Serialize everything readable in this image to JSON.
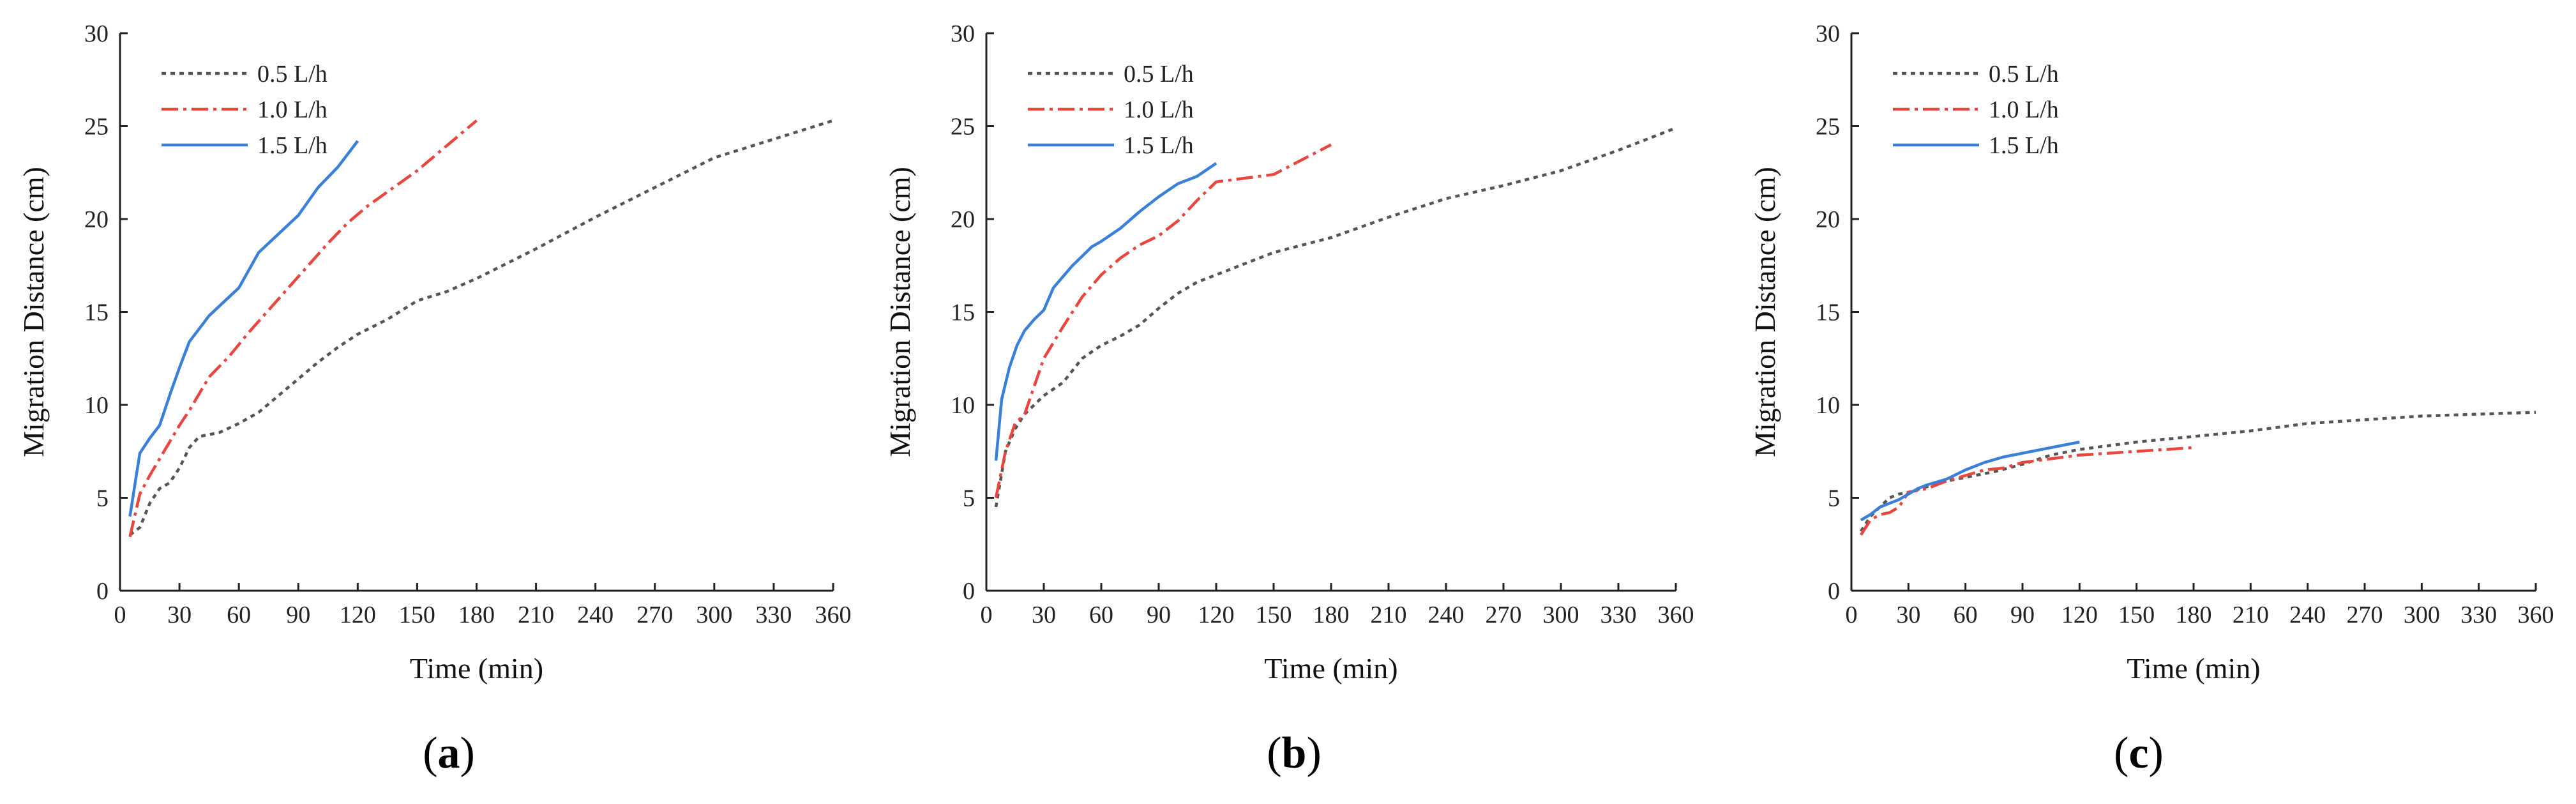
{
  "series_styles": [
    {
      "color": "#555555",
      "dash": "7,7",
      "legend": "0.5 L/h"
    },
    {
      "color": "#e8473f",
      "dash": "26,8,5,8",
      "legend": "1.0 L/h"
    },
    {
      "color": "#3a7fd8",
      "dash": "",
      "legend": "1.5 L/h"
    }
  ],
  "chart_data": [
    {
      "type": "line",
      "panel_label": "a",
      "xlabel": "Time (min)",
      "ylabel": "Migration Distance (cm)",
      "xlim": [
        0,
        360
      ],
      "ylim": [
        0,
        30
      ],
      "xticks": [
        0,
        30,
        60,
        90,
        120,
        150,
        180,
        210,
        240,
        270,
        300,
        330,
        360
      ],
      "yticks": [
        0,
        5,
        10,
        15,
        20,
        25,
        30
      ],
      "grid": false,
      "legend": "top-left",
      "series": [
        {
          "name": "0.5 L/h",
          "x": [
            5,
            10,
            15,
            20,
            25,
            30,
            35,
            40,
            50,
            60,
            70,
            80,
            90,
            100,
            110,
            120,
            135,
            150,
            165,
            180,
            210,
            240,
            270,
            300,
            330,
            360
          ],
          "y": [
            3.0,
            3.4,
            4.7,
            5.5,
            5.8,
            6.6,
            7.7,
            8.3,
            8.5,
            9.0,
            9.6,
            10.5,
            11.4,
            12.3,
            13.1,
            13.8,
            14.6,
            15.6,
            16.1,
            16.8,
            18.4,
            20.1,
            21.7,
            23.3,
            24.3,
            25.3
          ]
        },
        {
          "name": "1.0 L/h",
          "x": [
            5,
            10,
            15,
            20,
            25,
            30,
            35,
            40,
            45,
            55,
            65,
            75,
            85,
            95,
            105,
            115,
            125,
            150,
            180
          ],
          "y": [
            2.9,
            5.2,
            6.2,
            7.1,
            8.0,
            8.9,
            9.7,
            10.6,
            11.5,
            12.6,
            13.9,
            15.1,
            16.3,
            17.5,
            18.7,
            19.8,
            20.7,
            22.6,
            25.3
          ]
        },
        {
          "name": "1.5 L/h",
          "x": [
            5,
            10,
            15,
            20,
            25,
            30,
            35,
            40,
            45,
            50,
            55,
            60,
            70,
            80,
            90,
            100,
            110,
            120
          ],
          "y": [
            4.0,
            7.4,
            8.2,
            8.9,
            10.5,
            12.0,
            13.4,
            14.1,
            14.8,
            15.3,
            15.8,
            16.3,
            18.2,
            19.2,
            20.2,
            21.7,
            22.8,
            24.2
          ]
        }
      ]
    },
    {
      "type": "line",
      "panel_label": "b",
      "xlabel": "Time (min)",
      "ylabel": "Migration Distance (cm)",
      "xlim": [
        0,
        360
      ],
      "ylim": [
        0,
        30
      ],
      "xticks": [
        0,
        30,
        60,
        90,
        120,
        150,
        180,
        210,
        240,
        270,
        300,
        330,
        360
      ],
      "yticks": [
        0,
        5,
        10,
        15,
        20,
        25,
        30
      ],
      "grid": false,
      "legend": "top-left",
      "series": [
        {
          "name": "0.5 L/h",
          "x": [
            5,
            10,
            15,
            20,
            25,
            30,
            40,
            50,
            60,
            70,
            80,
            90,
            100,
            110,
            120,
            135,
            150,
            165,
            180,
            210,
            240,
            270,
            300,
            330,
            360
          ],
          "y": [
            4.5,
            7.5,
            8.7,
            9.5,
            10.0,
            10.5,
            11.2,
            12.5,
            13.2,
            13.7,
            14.3,
            15.2,
            16.0,
            16.6,
            17.0,
            17.6,
            18.2,
            18.6,
            19.0,
            20.1,
            21.1,
            21.8,
            22.6,
            23.7,
            24.9
          ]
        },
        {
          "name": "1.0 L/h",
          "x": [
            5,
            10,
            15,
            20,
            25,
            30,
            40,
            50,
            60,
            70,
            80,
            90,
            100,
            110,
            120,
            135,
            150,
            165,
            180
          ],
          "y": [
            5.0,
            7.5,
            9.0,
            9.5,
            11.0,
            12.5,
            14.2,
            15.8,
            17.0,
            17.9,
            18.6,
            19.1,
            19.9,
            21.0,
            22.0,
            22.2,
            22.4,
            23.2,
            24.0
          ]
        },
        {
          "name": "1.5 L/h",
          "x": [
            5,
            8,
            12,
            16,
            20,
            25,
            30,
            35,
            40,
            45,
            50,
            55,
            60,
            70,
            80,
            90,
            100,
            110,
            120
          ],
          "y": [
            7.0,
            10.3,
            12.0,
            13.2,
            14.0,
            14.6,
            15.1,
            16.3,
            16.9,
            17.5,
            18.0,
            18.5,
            18.8,
            19.5,
            20.4,
            21.2,
            21.9,
            22.3,
            23.0
          ]
        }
      ]
    },
    {
      "type": "line",
      "panel_label": "c",
      "xlabel": "Time (min)",
      "ylabel": "Migration Distance (cm)",
      "xlim": [
        0,
        360
      ],
      "ylim": [
        0,
        30
      ],
      "xticks": [
        0,
        30,
        60,
        90,
        120,
        150,
        180,
        210,
        240,
        270,
        300,
        330,
        360
      ],
      "yticks": [
        0,
        5,
        10,
        15,
        20,
        25,
        30
      ],
      "grid": false,
      "legend": "top-left",
      "series": [
        {
          "name": "0.5 L/h",
          "x": [
            5,
            10,
            15,
            20,
            25,
            30,
            40,
            50,
            60,
            75,
            90,
            105,
            120,
            150,
            180,
            210,
            240,
            270,
            300,
            330,
            360
          ],
          "y": [
            3.2,
            4.0,
            4.5,
            5.0,
            5.2,
            5.3,
            5.6,
            5.9,
            6.1,
            6.4,
            6.8,
            7.3,
            7.6,
            8.0,
            8.3,
            8.6,
            9.0,
            9.2,
            9.4,
            9.5,
            9.6
          ]
        },
        {
          "name": "1.0 L/h",
          "x": [
            5,
            10,
            15,
            20,
            25,
            30,
            40,
            50,
            60,
            70,
            80,
            90,
            105,
            120,
            150,
            180
          ],
          "y": [
            3.0,
            3.8,
            4.1,
            4.2,
            4.5,
            5.3,
            5.5,
            5.9,
            6.2,
            6.5,
            6.6,
            6.9,
            7.1,
            7.3,
            7.5,
            7.7
          ]
        },
        {
          "name": "1.5 L/h",
          "x": [
            5,
            10,
            15,
            20,
            25,
            30,
            35,
            40,
            50,
            60,
            70,
            80,
            90,
            100,
            110,
            120
          ],
          "y": [
            3.8,
            4.1,
            4.5,
            4.7,
            4.9,
            5.2,
            5.5,
            5.7,
            6.0,
            6.5,
            6.9,
            7.2,
            7.4,
            7.6,
            7.8,
            8.0
          ]
        }
      ]
    }
  ]
}
